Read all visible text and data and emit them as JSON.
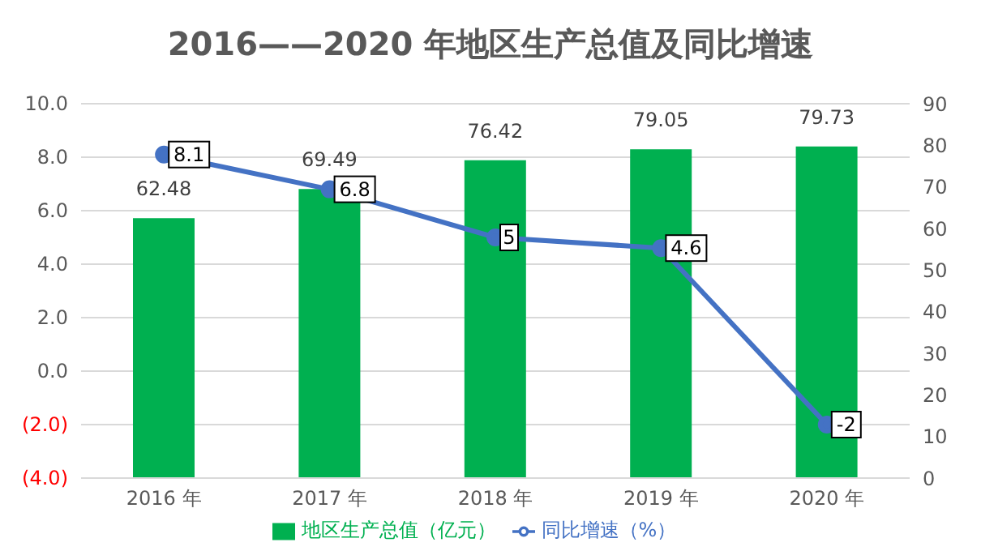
{
  "chart_data": {
    "type": "bar",
    "title": "2016——2020 年地区生产总值及同比增速",
    "categories": [
      "2016 年",
      "2017 年",
      "2018 年",
      "2019 年",
      "2020 年"
    ],
    "series": [
      {
        "name": "地区生产总值（亿元）",
        "axis": "y2",
        "color": "#00b050",
        "values": [
          62.48,
          69.49,
          76.42,
          79.05,
          79.73
        ]
      },
      {
        "name": "同比增速（%）",
        "type": "line",
        "axis": "y",
        "color": "#4472c4",
        "values": [
          8.1,
          6.8,
          5,
          4.6,
          -2
        ]
      }
    ],
    "ylim": [
      -4,
      10
    ],
    "yticks": [
      {
        "value": -4,
        "label": "(4.0)"
      },
      {
        "value": -2,
        "label": "(2.0)"
      },
      {
        "value": 0,
        "label": "0.0"
      },
      {
        "value": 2,
        "label": "2.0"
      },
      {
        "value": 4,
        "label": "4.0"
      },
      {
        "value": 6,
        "label": "6.0"
      },
      {
        "value": 8,
        "label": "8.0"
      },
      {
        "value": 10,
        "label": "10.0"
      }
    ],
    "y2lim": [
      0,
      90
    ],
    "y2ticks": [
      0,
      10,
      20,
      30,
      40,
      50,
      60,
      70,
      80,
      90
    ],
    "grid": "y",
    "legend": "bottom",
    "marker": "circle",
    "data_labels": true
  }
}
